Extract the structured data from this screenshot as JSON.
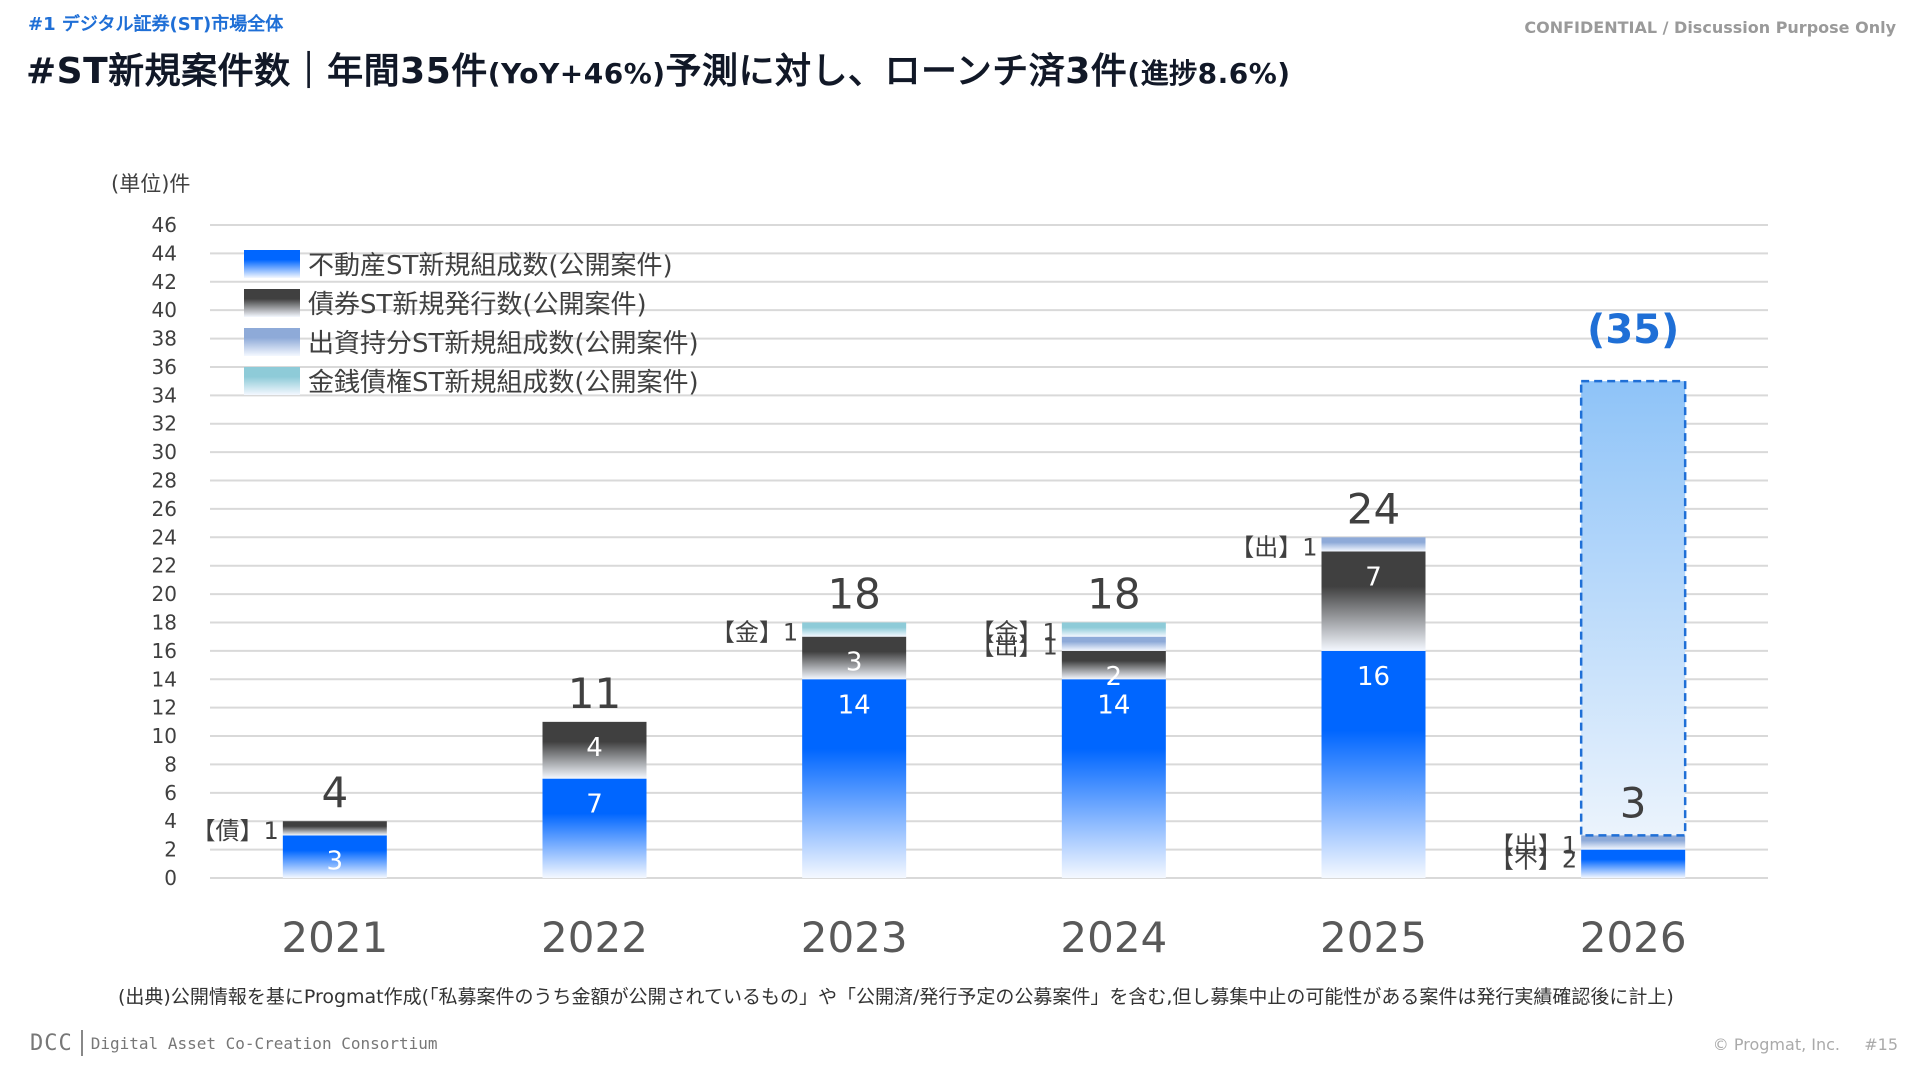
{
  "header": {
    "section_tag": "#1 デジタル証券(ST)市場全体",
    "confidential": "CONFIDENTIAL / Discussion Purpose Only",
    "title_part1": "#ST新規案件数｜年間35件",
    "title_part2": "(YoY+46%)",
    "title_part3": "予測に対し、ローンチ済3件",
    "title_part4": "(進捗8.6%)"
  },
  "chart_data": {
    "type": "bar",
    "stacked": true,
    "unit_label": "(単位)件",
    "categories": [
      "2021",
      "2022",
      "2023",
      "2024",
      "2025",
      "2026"
    ],
    "ylim": [
      0,
      46
    ],
    "yticks": [
      0,
      2,
      4,
      6,
      8,
      10,
      12,
      14,
      16,
      18,
      20,
      22,
      24,
      26,
      28,
      30,
      32,
      34,
      36,
      38,
      40,
      42,
      44,
      46
    ],
    "grid": true,
    "legend_position": "top-left",
    "series": [
      {
        "name": "不動産ST新規組成数(公開案件)",
        "short": "不",
        "color": "#0066ff",
        "values": [
          3,
          7,
          14,
          14,
          16,
          2
        ]
      },
      {
        "name": "債券ST新規発行数(公開案件)",
        "short": "債",
        "color": "#404040",
        "values": [
          1,
          4,
          3,
          2,
          7,
          0
        ]
      },
      {
        "name": "出資持分ST新規組成数(公開案件)",
        "short": "出",
        "color": "#8eaad8",
        "values": [
          0,
          0,
          0,
          1,
          1,
          1
        ]
      },
      {
        "name": "金銭債権ST新規組成数(公開案件)",
        "short": "金",
        "color": "#8ecbd8",
        "values": [
          0,
          0,
          1,
          1,
          0,
          0
        ]
      }
    ],
    "totals": [
      "4",
      "11",
      "18",
      "18",
      "24",
      "3"
    ],
    "forecast": {
      "category": "2026",
      "value": 35,
      "label": "(35)",
      "color": "#1f6fd6"
    },
    "side_labels": [
      {
        "category": "2021",
        "text": "【債】1"
      },
      {
        "category": "2023",
        "text": "【金】1"
      },
      {
        "category": "2024",
        "text": "【金】1"
      },
      {
        "category": "2024",
        "text": "【出】1"
      },
      {
        "category": "2025",
        "text": "【出】1"
      },
      {
        "category": "2026",
        "text": "【出】1"
      },
      {
        "category": "2026",
        "text": "【不】2"
      }
    ],
    "inner_labels": {
      "2021": [
        "3",
        "",
        "",
        ""
      ],
      "2022": [
        "7",
        "4",
        "",
        ""
      ],
      "2023": [
        "14",
        "3",
        "",
        ""
      ],
      "2024": [
        "14",
        "2",
        "",
        ""
      ],
      "2025": [
        "16",
        "7",
        "",
        ""
      ],
      "2026": [
        "",
        "",
        "",
        ""
      ]
    }
  },
  "footer": {
    "source_note": "(出典)公開情報を基にProgmat作成(「私募案件のうち金額が公開されているもの」や「公開済/発行予定の公募案件」を含む,但し募集中止の可能性がある案件は発行実績確認後に計上)",
    "logo_mark": "DCC",
    "logo_name": "Digital Asset Co-Creation Consortium",
    "copyright": "© Progmat, Inc.",
    "page_number": "#15"
  }
}
